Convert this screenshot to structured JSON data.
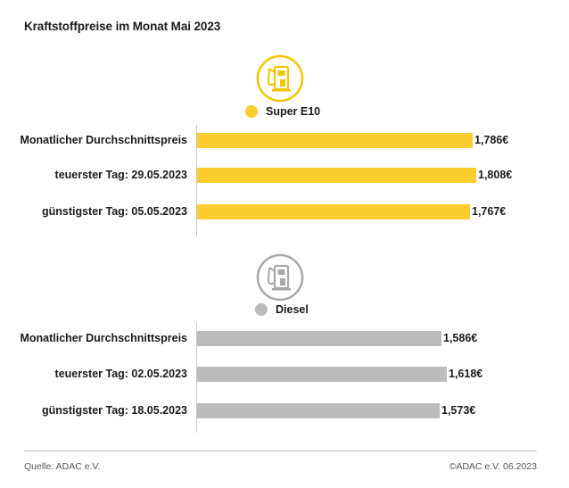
{
  "title": "Kraftstoffpreise im Monat Mai 2023",
  "colors": {
    "e10": "#FDCC2E",
    "diesel": "#BDBBBB",
    "e10_icon": "#F4C400",
    "diesel_icon": "#A8A8A8"
  },
  "chart_data": [
    {
      "type": "bar",
      "orientation": "horizontal",
      "legend": "Super E10",
      "icon": "fuel-pump-icon",
      "categories": [
        "Monatlicher Durchschnittspreis",
        "teuerster Tag: 29.05.2023",
        "günstigster Tag: 05.05.2023"
      ],
      "values": [
        1.786,
        1.808,
        1.767
      ],
      "value_labels": [
        "1,786€",
        "1,808€",
        "1,767€"
      ]
    },
    {
      "type": "bar",
      "orientation": "horizontal",
      "legend": "Diesel",
      "icon": "fuel-pump-icon",
      "categories": [
        "Monatlicher Durchschnittspreis",
        "teuerster Tag: 02.05.2023",
        "günstigster Tag: 18.05.2023"
      ],
      "values": [
        1.586,
        1.618,
        1.573
      ],
      "value_labels": [
        "1,586€",
        "1,618€",
        "1,573€"
      ]
    }
  ],
  "footer": {
    "source": "Quelle: ADAC e.V.",
    "copyright": "©ADAC e.V. 06.2023"
  }
}
